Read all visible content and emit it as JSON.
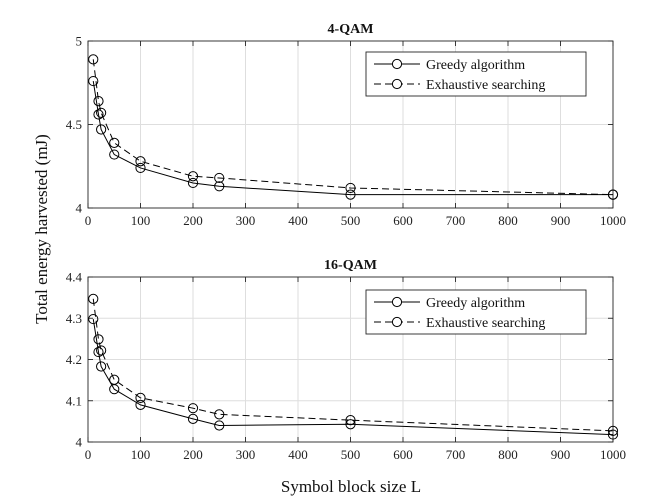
{
  "figure": {
    "ylabel": "Total energy harvested (mJ)",
    "xlabel": "Symbol block size L"
  },
  "chart_data": [
    {
      "type": "line",
      "title": "4-QAM",
      "xlabel": "Symbol block size L",
      "ylabel": "Total energy harvested (mJ)",
      "xlim": [
        0,
        1000
      ],
      "ylim": [
        4,
        5
      ],
      "xticks": [
        0,
        100,
        200,
        300,
        400,
        500,
        600,
        700,
        800,
        900,
        1000
      ],
      "yticks": [
        4,
        4.5,
        5
      ],
      "ytick_labels": [
        "4",
        "4.5",
        "5"
      ],
      "grid": true,
      "legend_position": "top-right",
      "series": [
        {
          "name": "Greedy algorithm",
          "style": "solid",
          "x": [
            10,
            20,
            25,
            50,
            100,
            200,
            250,
            500,
            1000
          ],
          "y": [
            4.76,
            4.56,
            4.47,
            4.32,
            4.24,
            4.15,
            4.13,
            4.08,
            4.08
          ]
        },
        {
          "name": "Exhaustive searching",
          "style": "dashed",
          "x": [
            10,
            20,
            25,
            50,
            100,
            200,
            250,
            500,
            1000
          ],
          "y": [
            4.89,
            4.64,
            4.57,
            4.39,
            4.28,
            4.19,
            4.18,
            4.12,
            4.08
          ]
        }
      ]
    },
    {
      "type": "line",
      "title": "16-QAM",
      "xlabel": "Symbol block size L",
      "ylabel": "Total energy harvested (mJ)",
      "xlim": [
        0,
        1000
      ],
      "ylim": [
        4,
        4.4
      ],
      "xticks": [
        0,
        100,
        200,
        300,
        400,
        500,
        600,
        700,
        800,
        900,
        1000
      ],
      "yticks": [
        4,
        4.1,
        4.2,
        4.3,
        4.4
      ],
      "ytick_labels": [
        "4",
        "4.1",
        "4.2",
        "4.3",
        "4.4"
      ],
      "grid": true,
      "legend_position": "top-right",
      "series": [
        {
          "name": "Greedy algorithm",
          "style": "solid",
          "x": [
            10,
            20,
            25,
            50,
            100,
            200,
            250,
            500,
            1000
          ],
          "y": [
            4.298,
            4.218,
            4.183,
            4.128,
            4.09,
            4.056,
            4.04,
            4.043,
            4.018
          ]
        },
        {
          "name": "Exhaustive searching",
          "style": "dashed",
          "x": [
            10,
            20,
            25,
            50,
            100,
            200,
            250,
            500,
            1000
          ],
          "y": [
            4.347,
            4.249,
            4.222,
            4.151,
            4.107,
            4.082,
            4.067,
            4.053,
            4.027
          ]
        }
      ]
    }
  ]
}
